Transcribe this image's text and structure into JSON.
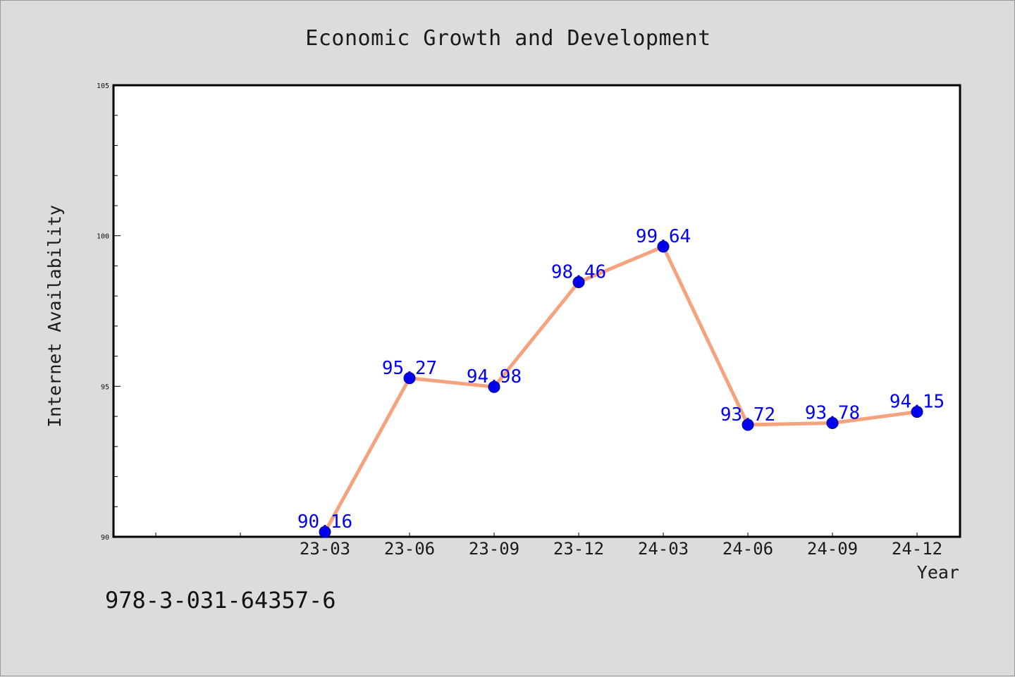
{
  "footer": {
    "identifier": "978-3-031-64357-6"
  },
  "colors": {
    "background": "#dcdcdc",
    "plot_background": "#ffffff",
    "line": "#f5a27e",
    "marker": "#0000ee",
    "data_label": "#0000ee",
    "axis": "#000000"
  },
  "chart_data": {
    "type": "line",
    "title": "Economic Growth and Development",
    "xlabel": "Year",
    "ylabel": "Internet Availability",
    "x_tick_labels": [
      "23-03",
      "23-06",
      "23-09",
      "23-12",
      "24-03",
      "24-06",
      "24-09",
      "24-12"
    ],
    "ylim": [
      90,
      105
    ],
    "y_ticks": [
      90,
      95,
      100,
      105
    ],
    "y_minor_step": 1,
    "grid": false,
    "legend": "none",
    "series": [
      {
        "x": [
          "23-03",
          "23-06",
          "23-09",
          "23-12",
          "24-03",
          "24-06",
          "24-09",
          "24-12"
        ],
        "values": [
          90.16,
          95.27,
          94.98,
          98.46,
          99.64,
          93.72,
          93.78,
          94.15
        ],
        "labels": [
          "90.16",
          "95.27",
          "94.98",
          "98.46",
          "99.64",
          "93.72",
          "93.78",
          "94.15"
        ]
      }
    ]
  }
}
